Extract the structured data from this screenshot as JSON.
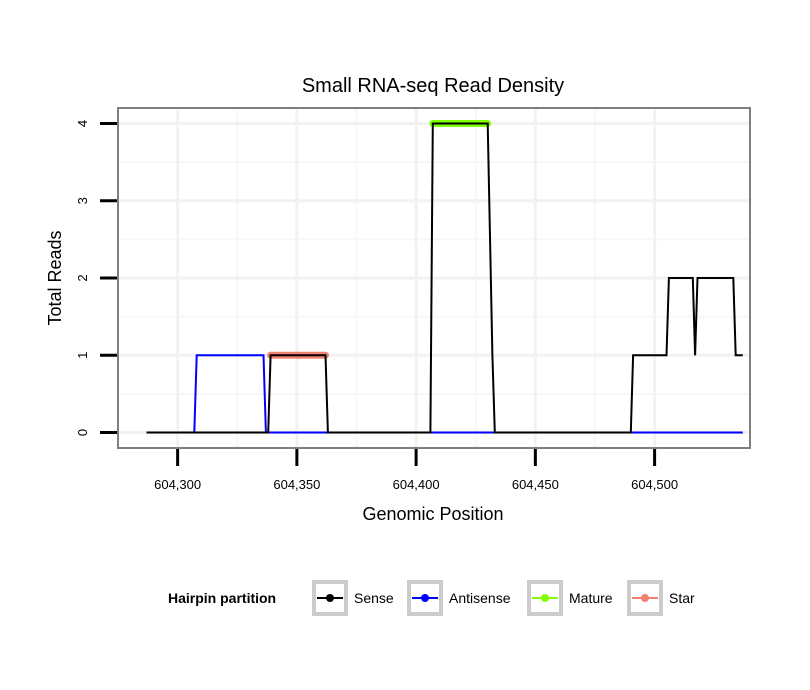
{
  "chart_data": {
    "type": "line",
    "title": "Small RNA-seq Read Density",
    "xlabel": "Genomic Position",
    "ylabel": "Total Reads",
    "xlim": [
      604275,
      604540
    ],
    "ylim": [
      -0.2,
      4.2
    ],
    "x_ticks": [
      604300,
      604350,
      604400,
      604450,
      604500
    ],
    "x_tick_labels": [
      "604,300",
      "604,350",
      "604,400",
      "604,450",
      "604,500"
    ],
    "y_ticks": [
      0,
      1,
      2,
      3,
      4
    ],
    "y_tick_labels": [
      "0",
      "1",
      "2",
      "3",
      "4"
    ],
    "grid": true,
    "legend": {
      "title": "Hairpin partition",
      "position": "bottom",
      "entries": [
        "Sense",
        "Antisense",
        "Mature",
        "Star"
      ]
    },
    "series": [
      {
        "name": "Sense",
        "color": "#000000",
        "style": "line",
        "points": [
          [
            604287,
            0
          ],
          [
            604338,
            0
          ],
          [
            604339,
            1
          ],
          [
            604362,
            1
          ],
          [
            604363,
            0
          ],
          [
            604406,
            0
          ],
          [
            604407,
            4
          ],
          [
            604430,
            4
          ],
          [
            604432,
            1
          ],
          [
            604433,
            0
          ],
          [
            604490,
            0
          ],
          [
            604491,
            1
          ],
          [
            604505,
            1
          ],
          [
            604506,
            2
          ],
          [
            604516,
            2
          ],
          [
            604517,
            1
          ],
          [
            604518,
            2
          ],
          [
            604533,
            2
          ],
          [
            604534,
            1
          ],
          [
            604537,
            1
          ]
        ]
      },
      {
        "name": "Antisense",
        "color": "#0000ff",
        "style": "line",
        "points": [
          [
            604287,
            0
          ],
          [
            604307,
            0
          ],
          [
            604308,
            1
          ],
          [
            604336,
            1
          ],
          [
            604337,
            0
          ],
          [
            604537,
            0
          ]
        ]
      },
      {
        "name": "Mature",
        "color": "#7fff00",
        "style": "band",
        "points": [
          [
            604407,
            4
          ],
          [
            604430,
            4
          ]
        ]
      },
      {
        "name": "Star",
        "color": "#f08070",
        "style": "band",
        "points": [
          [
            604339,
            1
          ],
          [
            604362,
            1
          ]
        ]
      }
    ]
  }
}
